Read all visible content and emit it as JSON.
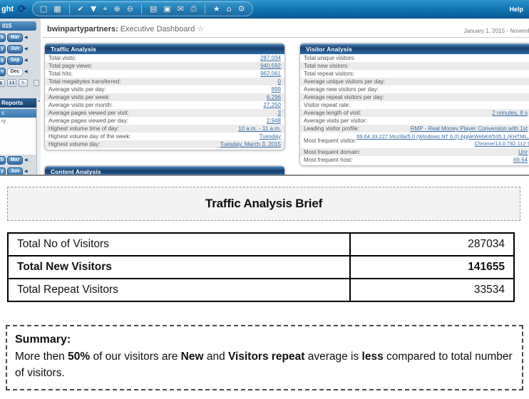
{
  "toolbar": {
    "partial_left_text": "ght",
    "help_label": "Help",
    "refresh_glyph": "⟳",
    "icon_groups": [
      [
        {
          "name": "marquee-select-icon",
          "glyph": "□"
        },
        {
          "name": "report-table-icon",
          "glyph": "▦"
        }
      ],
      [
        {
          "name": "graph-options-icon",
          "glyph": "✔"
        },
        {
          "name": "filter-icon",
          "glyph": "▼"
        },
        {
          "name": "pin-icon",
          "glyph": "⌖"
        },
        {
          "name": "zoom-in-icon",
          "glyph": "⊕"
        },
        {
          "name": "zoom-out-icon",
          "glyph": "⊖"
        }
      ],
      [
        {
          "name": "export-report-icon",
          "glyph": "▤"
        },
        {
          "name": "save-icon",
          "glyph": "▣"
        },
        {
          "name": "email-icon",
          "glyph": "✉"
        },
        {
          "name": "print-icon",
          "glyph": "⎙"
        }
      ],
      [
        {
          "name": "favorites-icon",
          "glyph": "★"
        },
        {
          "name": "home-icon",
          "glyph": "⌂"
        },
        {
          "name": "settings-icon",
          "glyph": "⚙"
        }
      ]
    ]
  },
  "header": {
    "account": "bwinpartypartners:",
    "title": "Executive Dashboard",
    "star_icon": "☆",
    "date_range": "January 1, 2015 - Novemb"
  },
  "sidebar": {
    "year_header_partial": "015",
    "month_rows": [
      {
        "partial": "b",
        "month": "Mar",
        "selected": false
      },
      {
        "partial": "y",
        "month": "Jun",
        "selected": false
      },
      {
        "partial": "g",
        "month": "Sep",
        "selected": false
      },
      {
        "partial": "v",
        "month": "Dec",
        "selected": true
      }
    ],
    "calendar_icons": [
      {
        "name": "calendar-partial-icon",
        "glyph": "▦",
        "partial": true
      },
      {
        "name": "calendar-12-icon",
        "glyph": "12",
        "partial": false
      },
      {
        "name": "calendar-edit-icon",
        "glyph": "✎",
        "partial": false
      }
    ],
    "reports_header_partial": "Reports",
    "selected_item_partial": "s",
    "item_partial": "ry",
    "bottom_month_rows": [
      {
        "partial": "b",
        "month": "Mar",
        "selected": false
      },
      {
        "partial": "y",
        "month": "Jun",
        "selected": false
      }
    ],
    "scroll_arrow": "▲",
    "month_arrow": "◀"
  },
  "panels": {
    "traffic": {
      "title": "Traffic Analysis",
      "rows": [
        {
          "label": "Total visits:",
          "value": "287,034"
        },
        {
          "label": "Total page views:",
          "value": "940,592"
        },
        {
          "label": "Total hits:",
          "value": "962,061"
        },
        {
          "label": "Total megabytes transferred:",
          "value": "0"
        },
        {
          "label": "Average visits per day:",
          "value": "899"
        },
        {
          "label": "Average visits per week:",
          "value": "6,296"
        },
        {
          "label": "Average visits per month:",
          "value": "27,250"
        },
        {
          "label": "Average pages viewed per visit:",
          "value": "3"
        },
        {
          "label": "Average pages viewed per day:",
          "value": "2,948"
        },
        {
          "label": "Highest volume time of day:",
          "value": "10 a.m. - 11 a.m."
        },
        {
          "label": "Highest volume day of the week:",
          "value": "Tuesday"
        },
        {
          "label": "Highest volume day:",
          "value": "Tuesday, March 3, 2015"
        }
      ]
    },
    "visitor": {
      "title": "Visitor Analysis",
      "rows": [
        {
          "label": "Total unique visitors:",
          "value": ""
        },
        {
          "label": "Total new visitors:",
          "value": ""
        },
        {
          "label": "Total repeat visitors:",
          "value": ""
        },
        {
          "label": "Average unique visitors per day:",
          "value": ""
        },
        {
          "label": "Average new visitors per day:",
          "value": ""
        },
        {
          "label": "Average repeat visitors per day:",
          "value": ""
        },
        {
          "label": "Visitor repeat rate:",
          "value": ""
        },
        {
          "label": "Average length of visit:",
          "value": "2 minutes, 8 s"
        },
        {
          "label": "Average visits per visitor:",
          "value": ""
        },
        {
          "label": "Leading visitor profile:",
          "value": "RMP - Real Money Player Conversion with 1st"
        },
        {
          "label": "Most frequent visitor:",
          "value": "69.64.33.227 Mozilla/5.0 (Windows NT 6.0) AppleWebKit/535.1 (KHTML, like\nChrome/13.0.782.112 Safa",
          "two_line": true
        },
        {
          "label": "Most frequent domain:",
          "value": "Unr"
        },
        {
          "label": "Most frequent host:",
          "value": "69.64"
        }
      ]
    },
    "content": {
      "title": "Content Analysis"
    }
  },
  "brief": {
    "title": "Traffic Analysis Brief",
    "table": {
      "rows": [
        {
          "label": "Total No of Visitors",
          "value": "287034",
          "bold": false
        },
        {
          "label": "Total New Visitors",
          "value": "141655",
          "bold": true
        },
        {
          "label": "Total Repeat Visitors",
          "value": "33534",
          "bold": false
        }
      ]
    },
    "summary": {
      "heading": "Summary:",
      "segments": [
        {
          "text": "More then ",
          "bold": false
        },
        {
          "text": "50%",
          "bold": true
        },
        {
          "text": " of our visitors are ",
          "bold": false
        },
        {
          "text": "New",
          "bold": true
        },
        {
          "text": " and ",
          "bold": false
        },
        {
          "text": "Visitors repeat",
          "bold": true
        },
        {
          "text": " average is ",
          "bold": false
        },
        {
          "text": "less",
          "bold": true
        },
        {
          "text": " compared to total number of visitors.",
          "bold": false
        }
      ]
    }
  },
  "colors": {
    "toolbar_blue": "#1478b6",
    "panel_header_navy": "#16406f",
    "panel_header_blue": "#2e6ca7",
    "link_blue": "#3a6ea5",
    "row_alt_gray": "#ececec"
  }
}
